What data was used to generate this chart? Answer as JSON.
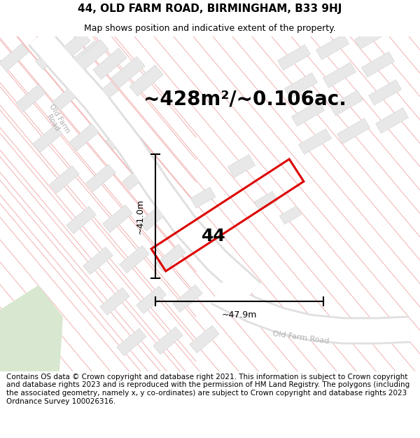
{
  "title": "44, OLD FARM ROAD, BIRMINGHAM, B33 9HJ",
  "subtitle": "Map shows position and indicative extent of the property.",
  "area_text": "~428m²/~0.106ac.",
  "property_label": "44",
  "dim_vertical": "~41.0m",
  "dim_horizontal": "~47.9m",
  "footer": "Contains OS data © Crown copyright and database right 2021. This information is subject to Crown copyright and database rights 2023 and is reproduced with the permission of HM Land Registry. The polygons (including the associated geometry, namely x, y co-ordinates) are subject to Crown copyright and database rights 2023 Ordnance Survey 100026316.",
  "bg_color": "#ffffff",
  "map_bg": "#f7f7f7",
  "property_color": "#dd0000",
  "road_line_color": "#f2b0b0",
  "road_bg_color": "#ebebeb",
  "building_color": "#e8e8e8",
  "building_edge": "#d8d8d8",
  "green_color": "#d8e8d0",
  "title_fontsize": 11,
  "subtitle_fontsize": 9,
  "area_fontsize": 20,
  "label_fontsize": 18,
  "footer_fontsize": 7.5,
  "road_label_color": "#b0b0b0",
  "dim_fontsize": 9
}
